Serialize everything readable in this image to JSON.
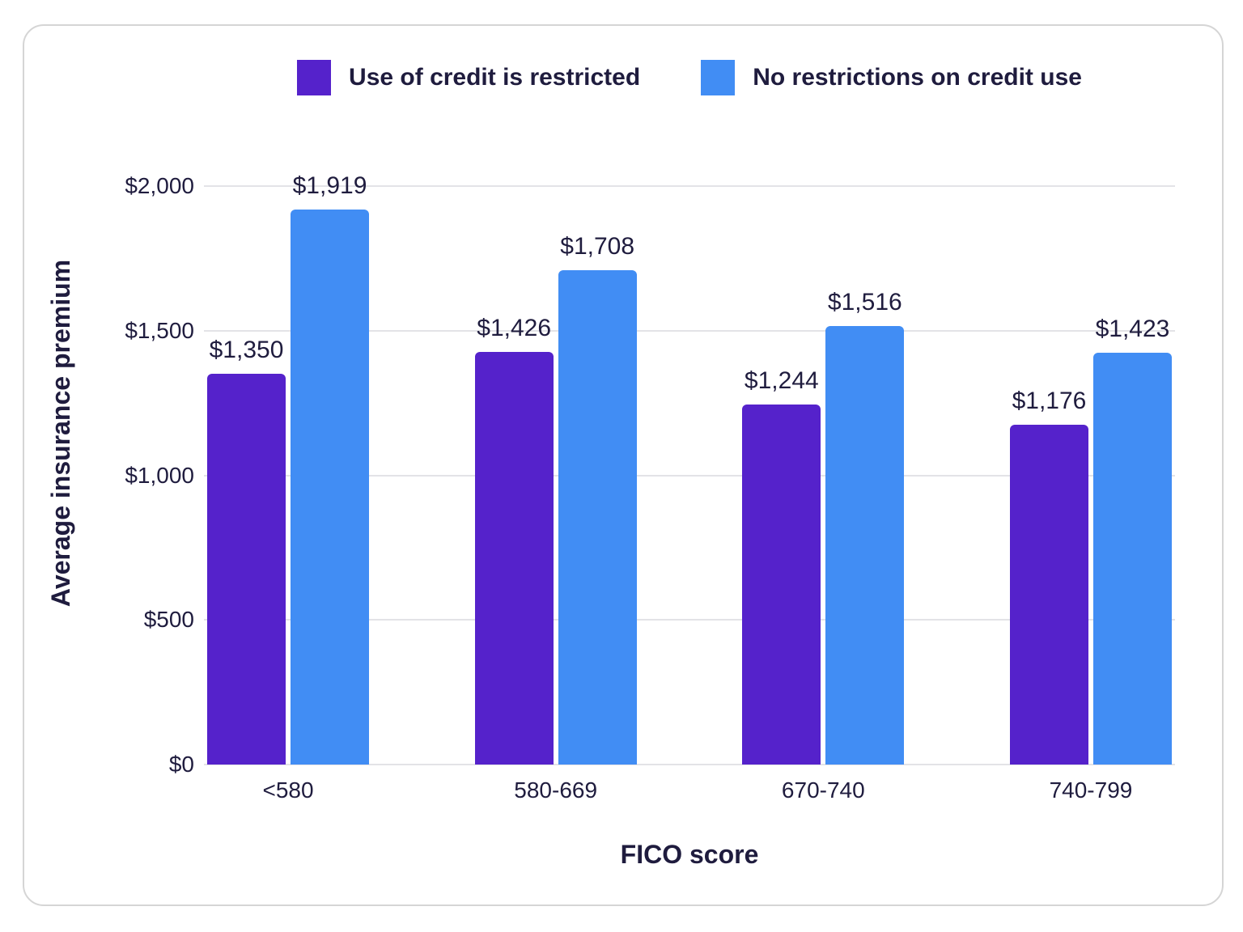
{
  "legend": {
    "items": [
      {
        "label": "Use of credit is restricted",
        "color": "#5522CB"
      },
      {
        "label": "No restrictions on credit use",
        "color": "#418DF4"
      }
    ]
  },
  "chart_data": {
    "type": "bar",
    "title": "",
    "categories": [
      "<580",
      "580-669",
      "670-740",
      "740-799"
    ],
    "series": [
      {
        "name": "Use of credit is restricted",
        "color": "#5522CB",
        "values": [
          1350,
          1426,
          1244,
          1176
        ],
        "value_labels": [
          "$1,350",
          "$1,426",
          "$1,244",
          "$1,176"
        ]
      },
      {
        "name": "No restrictions on credit use",
        "color": "#418DF4",
        "values": [
          1919,
          1708,
          1516,
          1423
        ],
        "value_labels": [
          "$1,919",
          "$1,708",
          "$1,516",
          "$1,423"
        ]
      }
    ],
    "xlabel": "FICO score",
    "ylabel": "Average insurance premium",
    "ylim": [
      0,
      2000
    ],
    "yticks": [
      {
        "value": 0,
        "label": "$0"
      },
      {
        "value": 500,
        "label": "$500"
      },
      {
        "value": 1000,
        "label": "$1,000"
      },
      {
        "value": 1500,
        "label": "$1,500"
      },
      {
        "value": 2000,
        "label": "$2,000"
      }
    ],
    "grid": true,
    "legend_position": "top"
  }
}
